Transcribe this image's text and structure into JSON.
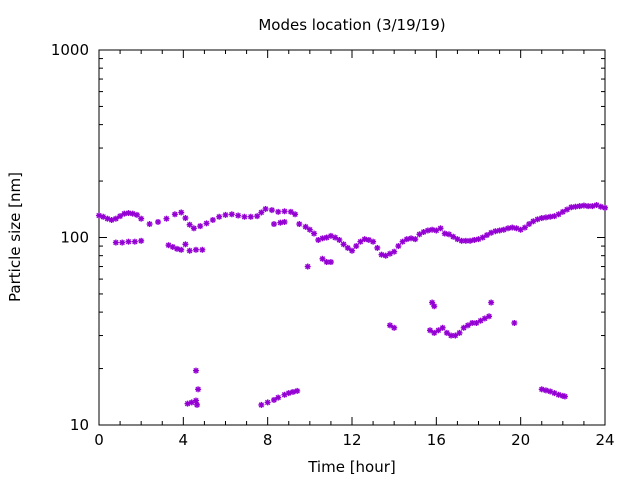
{
  "chart_data": {
    "type": "scatter",
    "title": "Modes location (3/19/19)",
    "xlabel": "Time [hour]",
    "ylabel": "Particle size [nm]",
    "xlim": [
      0,
      24
    ],
    "ylim": [
      10,
      1000
    ],
    "yscale": "log",
    "xticks": [
      "0",
      "4",
      "8",
      "12",
      "16",
      "20",
      "24"
    ],
    "xtick_values": [
      0,
      4,
      8,
      12,
      16,
      20,
      24
    ],
    "yticks": [
      "10",
      "100",
      "1000"
    ],
    "ytick_values": [
      10,
      100,
      1000
    ],
    "grid": false,
    "marker_color": "#9400d3",
    "series": [
      {
        "points": [
          [
            0.0,
            131
          ],
          [
            0.2,
            129
          ],
          [
            0.4,
            126
          ],
          [
            0.6,
            124
          ],
          [
            0.8,
            126
          ],
          [
            1.0,
            130
          ],
          [
            1.2,
            134
          ],
          [
            1.4,
            135
          ],
          [
            1.6,
            134
          ],
          [
            1.8,
            132
          ],
          [
            2.0,
            126
          ],
          [
            2.4,
            118
          ],
          [
            2.8,
            121
          ],
          [
            3.2,
            126
          ],
          [
            3.6,
            133
          ],
          [
            3.9,
            136
          ],
          [
            4.1,
            127
          ],
          [
            4.3,
            117
          ],
          [
            4.5,
            112
          ],
          [
            4.8,
            115
          ],
          [
            5.1,
            119
          ],
          [
            5.4,
            124
          ],
          [
            5.7,
            129
          ],
          [
            6.0,
            132
          ],
          [
            6.3,
            133
          ],
          [
            6.6,
            131
          ],
          [
            6.9,
            129
          ],
          [
            7.2,
            129
          ],
          [
            7.5,
            130
          ],
          [
            7.7,
            136
          ],
          [
            7.9,
            142
          ],
          [
            8.2,
            140
          ],
          [
            8.5,
            137
          ],
          [
            8.8,
            138
          ],
          [
            9.1,
            137
          ],
          [
            9.3,
            133
          ],
          [
            9.5,
            118
          ],
          [
            9.8,
            114
          ],
          [
            10.0,
            110
          ],
          [
            10.2,
            105
          ],
          [
            10.4,
            97
          ],
          [
            10.6,
            99
          ],
          [
            10.8,
            100
          ],
          [
            11.0,
            102
          ],
          [
            11.2,
            100
          ],
          [
            11.4,
            97
          ],
          [
            11.6,
            92
          ],
          [
            11.8,
            88
          ],
          [
            12.0,
            85
          ],
          [
            12.2,
            90
          ],
          [
            12.4,
            95
          ],
          [
            12.6,
            98
          ],
          [
            12.8,
            97
          ],
          [
            13.0,
            95
          ],
          [
            13.2,
            88
          ],
          [
            13.4,
            81
          ],
          [
            13.6,
            80
          ],
          [
            13.8,
            82
          ],
          [
            14.0,
            84
          ],
          [
            14.2,
            90
          ],
          [
            14.4,
            95
          ],
          [
            14.6,
            98
          ],
          [
            14.8,
            99
          ],
          [
            15.0,
            98
          ],
          [
            15.2,
            104
          ],
          [
            15.4,
            107
          ],
          [
            15.6,
            109
          ],
          [
            15.8,
            110
          ],
          [
            16.0,
            109
          ],
          [
            16.2,
            112
          ],
          [
            16.4,
            105
          ],
          [
            16.6,
            104
          ],
          [
            16.8,
            101
          ],
          [
            17.0,
            98
          ],
          [
            17.2,
            96
          ],
          [
            17.4,
            96
          ],
          [
            17.6,
            96
          ],
          [
            17.8,
            97
          ],
          [
            18.0,
            98
          ],
          [
            18.2,
            100
          ],
          [
            18.4,
            103
          ],
          [
            18.6,
            106
          ],
          [
            18.8,
            108
          ],
          [
            19.0,
            109
          ],
          [
            19.2,
            110
          ],
          [
            19.4,
            112
          ],
          [
            19.6,
            113
          ],
          [
            19.8,
            112
          ],
          [
            20.0,
            110
          ],
          [
            20.2,
            113
          ],
          [
            20.4,
            118
          ],
          [
            20.6,
            122
          ],
          [
            20.8,
            125
          ],
          [
            21.0,
            127
          ],
          [
            21.2,
            128
          ],
          [
            21.4,
            129
          ],
          [
            21.6,
            130
          ],
          [
            21.8,
            133
          ],
          [
            22.0,
            137
          ],
          [
            22.2,
            141
          ],
          [
            22.4,
            145
          ],
          [
            22.6,
            146
          ],
          [
            22.8,
            147
          ],
          [
            23.0,
            148
          ],
          [
            23.2,
            147
          ],
          [
            23.4,
            147
          ],
          [
            23.6,
            149
          ],
          [
            23.8,
            146
          ],
          [
            24.0,
            144
          ],
          [
            0.8,
            94
          ],
          [
            1.1,
            94
          ],
          [
            1.4,
            95
          ],
          [
            1.7,
            95
          ],
          [
            2.0,
            96
          ],
          [
            3.3,
            91
          ],
          [
            3.5,
            89
          ],
          [
            3.7,
            87
          ],
          [
            3.9,
            86
          ],
          [
            4.1,
            92
          ],
          [
            4.3,
            85
          ],
          [
            4.6,
            86
          ],
          [
            4.9,
            86
          ],
          [
            9.9,
            70
          ],
          [
            10.6,
            77
          ],
          [
            10.8,
            74
          ],
          [
            11.0,
            74
          ],
          [
            8.3,
            118
          ],
          [
            8.6,
            120
          ],
          [
            8.8,
            121
          ],
          [
            13.8,
            34
          ],
          [
            14.0,
            33
          ],
          [
            15.7,
            32
          ],
          [
            15.9,
            31
          ],
          [
            15.8,
            45
          ],
          [
            15.9,
            43
          ],
          [
            16.1,
            32
          ],
          [
            16.3,
            33
          ],
          [
            16.5,
            31
          ],
          [
            16.7,
            30
          ],
          [
            16.9,
            30
          ],
          [
            17.1,
            31
          ],
          [
            17.3,
            33
          ],
          [
            17.5,
            34
          ],
          [
            17.7,
            35
          ],
          [
            17.9,
            35
          ],
          [
            18.1,
            36
          ],
          [
            18.3,
            37
          ],
          [
            18.5,
            38
          ],
          [
            18.6,
            45
          ],
          [
            19.7,
            35
          ],
          [
            4.2,
            13
          ],
          [
            4.4,
            13.2
          ],
          [
            4.6,
            13.5
          ],
          [
            4.65,
            12.8
          ],
          [
            4.6,
            19.5
          ],
          [
            4.7,
            15.5
          ],
          [
            7.7,
            12.8
          ],
          [
            8.0,
            13.2
          ],
          [
            8.3,
            13.6
          ],
          [
            8.5,
            14.0
          ],
          [
            8.8,
            14.5
          ],
          [
            9.0,
            14.8
          ],
          [
            9.2,
            15.0
          ],
          [
            9.4,
            15.2
          ],
          [
            21.0,
            15.5
          ],
          [
            21.2,
            15.3
          ],
          [
            21.4,
            15.1
          ],
          [
            21.6,
            14.8
          ],
          [
            21.8,
            14.5
          ],
          [
            22.0,
            14.3
          ],
          [
            22.1,
            14.2
          ]
        ]
      }
    ]
  }
}
